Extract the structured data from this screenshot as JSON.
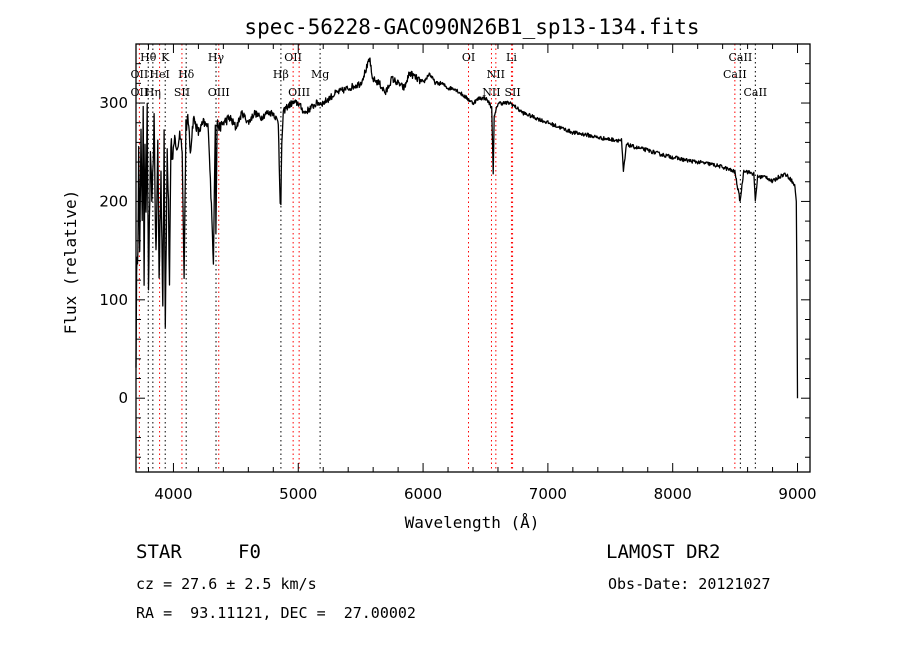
{
  "chart_data": {
    "type": "line",
    "title": "spec-56228-GAC090N26B1_sp13-134.fits",
    "xlabel": "Wavelength (Å)",
    "ylabel": "Flux (relative)",
    "xlim": [
      3700,
      9100
    ],
    "ylim": [
      -75,
      360
    ],
    "x_ticks": [
      4000,
      5000,
      6000,
      7000,
      8000,
      9000
    ],
    "y_ticks": [
      0,
      100,
      200,
      300
    ],
    "grid": false,
    "series": [
      {
        "color": "#000000",
        "x": [
          3700,
          3705,
          3715,
          3722,
          3730,
          3740,
          3750,
          3758,
          3765,
          3772,
          3780,
          3790,
          3800,
          3815,
          3830,
          3845,
          3860,
          3875,
          3885,
          3900,
          3915,
          3925,
          3935,
          3950,
          3960,
          3968,
          3980,
          3995,
          4010,
          4030,
          4050,
          4070,
          4085,
          4100,
          4105,
          4115,
          4135,
          4160,
          4200,
          4240,
          4280,
          4320,
          4335,
          4340,
          4350,
          4370,
          4400,
          4450,
          4500,
          4550,
          4600,
          4650,
          4700,
          4750,
          4800,
          4840,
          4855,
          4861,
          4868,
          4880,
          4900,
          4950,
          5000,
          5050,
          5100,
          5150,
          5200,
          5300,
          5400,
          5500,
          5560,
          5575,
          5590,
          5650,
          5700,
          5750,
          5800,
          5850,
          5890,
          5900,
          5950,
          6000,
          6050,
          6100,
          6150,
          6200,
          6250,
          6300,
          6350,
          6400,
          6450,
          6500,
          6530,
          6550,
          6562,
          6570,
          6600,
          6700,
          6800,
          6900,
          7000,
          7100,
          7200,
          7300,
          7400,
          7500,
          7590,
          7605,
          7630,
          7700,
          7800,
          7900,
          8000,
          8100,
          8200,
          8300,
          8400,
          8498,
          8540,
          8570,
          8600,
          8650,
          8662,
          8680,
          8750,
          8800,
          8850,
          8900,
          8950,
          8980,
          8990,
          8995,
          9000
        ],
        "y": [
          40,
          120,
          160,
          250,
          140,
          280,
          170,
          300,
          120,
          250,
          180,
          290,
          110,
          240,
          200,
          285,
          140,
          260,
          120,
          230,
          90,
          270,
          80,
          255,
          200,
          110,
          260,
          240,
          265,
          250,
          270,
          255,
          120,
          280,
          270,
          290,
          250,
          285,
          270,
          280,
          275,
          140,
          280,
          165,
          280,
          275,
          280,
          285,
          275,
          290,
          280,
          290,
          285,
          290,
          290,
          280,
          200,
          195,
          260,
          290,
          295,
          300,
          300,
          290,
          295,
          300,
          300,
          310,
          315,
          320,
          340,
          345,
          325,
          320,
          310,
          325,
          320,
          315,
          330,
          330,
          325,
          320,
          330,
          320,
          320,
          315,
          315,
          310,
          305,
          300,
          305,
          305,
          300,
          295,
          230,
          285,
          300,
          300,
          290,
          285,
          280,
          275,
          270,
          268,
          265,
          263,
          262,
          230,
          258,
          255,
          252,
          248,
          245,
          242,
          240,
          238,
          235,
          230,
          200,
          232,
          230,
          228,
          200,
          225,
          225,
          220,
          225,
          228,
          222,
          215,
          200,
          120,
          0
        ]
      }
    ],
    "annotations": [
      {
        "label": "Hθ",
        "x": 3798,
        "row": 1
      },
      {
        "label": "K",
        "x": 3934,
        "row": 1
      },
      {
        "label": "Hγ",
        "x": 4341,
        "row": 1
      },
      {
        "label": "OII",
        "x": 4959,
        "row": 1
      },
      {
        "label": "OI",
        "x": 6364,
        "row": 1
      },
      {
        "label": "Li",
        "x": 6708,
        "row": 1
      },
      {
        "label": "CaII",
        "x": 8542,
        "row": 1
      },
      {
        "label": "OII",
        "x": 3727,
        "row": 2
      },
      {
        "label": "HeI",
        "x": 3889,
        "row": 2
      },
      {
        "label": "Hδ",
        "x": 4102,
        "row": 2
      },
      {
        "label": "Hβ",
        "x": 4861,
        "row": 2
      },
      {
        "label": "Mg",
        "x": 5175,
        "row": 2
      },
      {
        "label": "NII",
        "x": 6583,
        "row": 2
      },
      {
        "label": "CaII",
        "x": 8498,
        "row": 2
      },
      {
        "label": "OII",
        "x": 3727,
        "row": 3
      },
      {
        "label": "Hη",
        "x": 3835,
        "row": 3
      },
      {
        "label": "SII",
        "x": 4068,
        "row": 3
      },
      {
        "label": "OIII",
        "x": 4363,
        "row": 3
      },
      {
        "label": "OIII",
        "x": 5007,
        "row": 3
      },
      {
        "label": "NII",
        "x": 6548,
        "row": 3
      },
      {
        "label": "SII",
        "x": 6717,
        "row": 3
      },
      {
        "label": "CaII",
        "x": 8662,
        "row": 3
      }
    ],
    "marker_lines": [
      {
        "x": 3727,
        "color": "#ff0000"
      },
      {
        "x": 3798,
        "color": "#000000"
      },
      {
        "x": 3835,
        "color": "#000000"
      },
      {
        "x": 3889,
        "color": "#ff0000"
      },
      {
        "x": 3934,
        "color": "#000000"
      },
      {
        "x": 4068,
        "color": "#ff0000"
      },
      {
        "x": 4102,
        "color": "#000000"
      },
      {
        "x": 4341,
        "color": "#000000"
      },
      {
        "x": 4363,
        "color": "#ff0000"
      },
      {
        "x": 4861,
        "color": "#000000"
      },
      {
        "x": 4959,
        "color": "#ff0000"
      },
      {
        "x": 5007,
        "color": "#ff0000"
      },
      {
        "x": 5175,
        "color": "#000000"
      },
      {
        "x": 6364,
        "color": "#ff0000"
      },
      {
        "x": 6548,
        "color": "#ff0000"
      },
      {
        "x": 6583,
        "color": "#ff0000"
      },
      {
        "x": 6708,
        "color": "#ff0000"
      },
      {
        "x": 6717,
        "color": "#ff0000"
      },
      {
        "x": 8498,
        "color": "#ff0000"
      },
      {
        "x": 8542,
        "color": "#000000"
      },
      {
        "x": 8662,
        "color": "#000000"
      }
    ]
  },
  "info": {
    "object_type": "STAR",
    "subclass": "F0",
    "survey": "LAMOST DR2",
    "redshift": "cz = 27.6 ± 2.5 km/s",
    "obs_date": "Obs-Date: 20121027",
    "coords": "RA =  93.11121, DEC =  27.00002"
  }
}
